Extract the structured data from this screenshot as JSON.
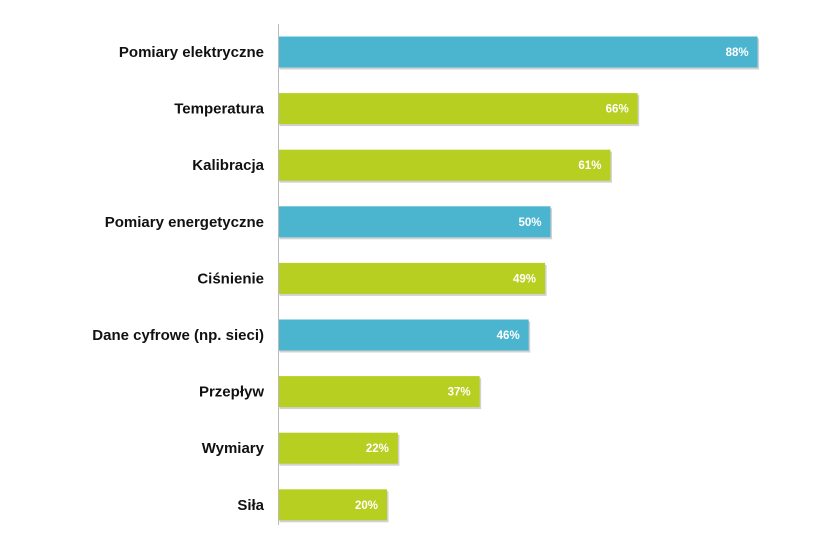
{
  "chart_data": {
    "type": "bar",
    "orientation": "horizontal",
    "title": "",
    "xlabel": "",
    "ylabel": "",
    "xlim": [
      0,
      100
    ],
    "grid": false,
    "legend": "none",
    "categories": [
      "Pomiary elektryczne",
      "Temperatura",
      "Kalibracja",
      "Pomiary energetyczne",
      "Ciśnienie",
      "Dane cyfrowe (np. sieci)",
      "Przepływ",
      "Wymiary",
      "Siła"
    ],
    "values": [
      88,
      66,
      61,
      50,
      49,
      46,
      37,
      22,
      20
    ],
    "value_labels": [
      "88%",
      "66%",
      "61%",
      "50%",
      "49%",
      "46%",
      "37%",
      "22%",
      "20%"
    ],
    "bar_colors": [
      "#4bb5cf",
      "#b7cf21",
      "#b7cf21",
      "#4bb5cf",
      "#b7cf21",
      "#4bb5cf",
      "#b7cf21",
      "#b7cf21",
      "#b7cf21"
    ],
    "axis_color": "#bbbbbb"
  }
}
